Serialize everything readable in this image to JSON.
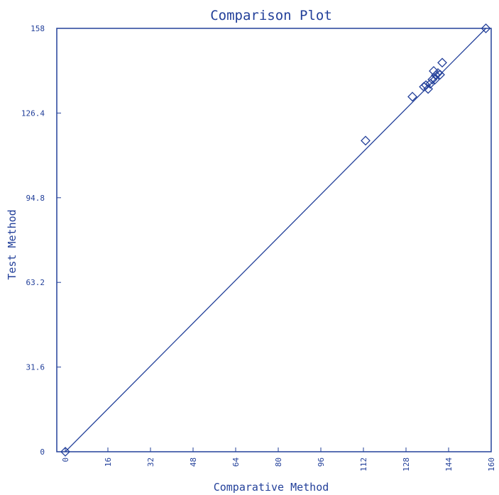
{
  "chart_data": {
    "type": "scatter",
    "title": "Comparison Plot",
    "x_label": "Comparative Method",
    "y_label": "Test Method",
    "color": "#23409a",
    "x": [
      0,
      112.8,
      130.4,
      134.7,
      135.5,
      136.3,
      137.1,
      137.9,
      138.9,
      138.4,
      139.2,
      140,
      140.8,
      141.6,
      158
    ],
    "y": [
      0,
      116.1,
      132.5,
      136.2,
      136.8,
      135.4,
      137.3,
      138.9,
      138.9,
      142.1,
      140.5,
      141.3,
      140.7,
      145.2,
      158
    ],
    "line": {
      "x": [
        0,
        158
      ],
      "y": [
        0,
        158
      ]
    },
    "xlim": [
      -3.2,
      160
    ],
    "ylim": [
      0,
      158
    ],
    "xticks": [
      0,
      16,
      32,
      48,
      64,
      80,
      96,
      112,
      128,
      144,
      160
    ],
    "yticks": [
      0,
      31.6,
      63.2,
      94.8,
      126.4,
      158
    ]
  }
}
